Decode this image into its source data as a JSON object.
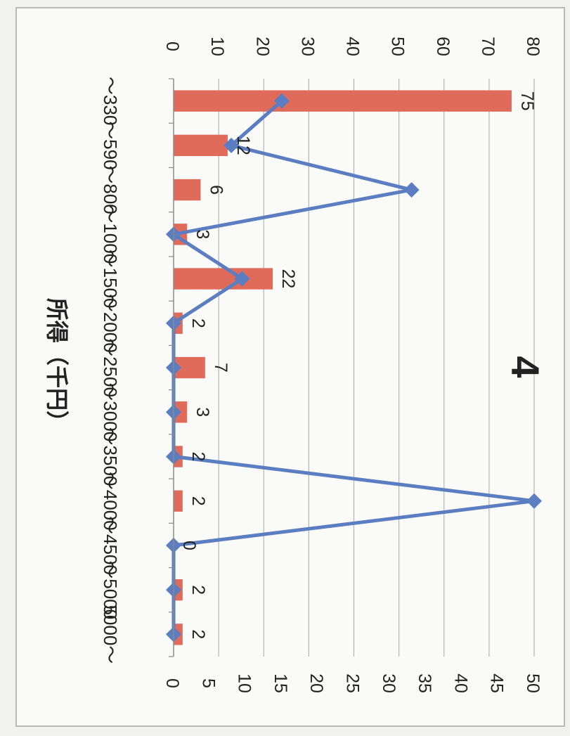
{
  "chart_data": {
    "type": "bar+line",
    "title": "",
    "panel_label": "4",
    "xlabel": "所得（千円）",
    "categories": [
      "～330",
      "～590",
      "～800",
      "～1000",
      "～1500",
      "～2000",
      "～2500",
      "～3000",
      "～3500",
      "～4000",
      "～4500",
      "～5000",
      "5000～"
    ],
    "series": [
      {
        "type": "bar",
        "axis": "left",
        "color": "#e06b5b",
        "values": [
          75,
          12,
          6,
          3,
          22,
          2,
          7,
          3,
          2,
          2,
          0,
          2,
          2
        ]
      },
      {
        "type": "line",
        "axis": "right",
        "color": "#5b7ec2",
        "values": [
          15,
          8,
          33,
          0,
          9.5,
          0,
          0,
          0,
          0,
          50,
          0,
          0,
          0
        ]
      }
    ],
    "left_axis": {
      "min": 0,
      "max": 80,
      "ticks": [
        "0",
        "10",
        "20",
        "30",
        "40",
        "50",
        "60",
        "70",
        "80"
      ]
    },
    "right_axis": {
      "min": 0,
      "max": 50,
      "ticks": [
        "0",
        "5",
        "10",
        "15",
        "20",
        "25",
        "30",
        "35",
        "40",
        "45",
        "50"
      ]
    },
    "bar_labels": [
      "75",
      "12",
      "6",
      "3",
      "22",
      "2",
      "7",
      "3",
      "2",
      "2",
      "0",
      "2",
      "2"
    ],
    "grid": true,
    "orientation": "rotated-90-clockwise"
  }
}
